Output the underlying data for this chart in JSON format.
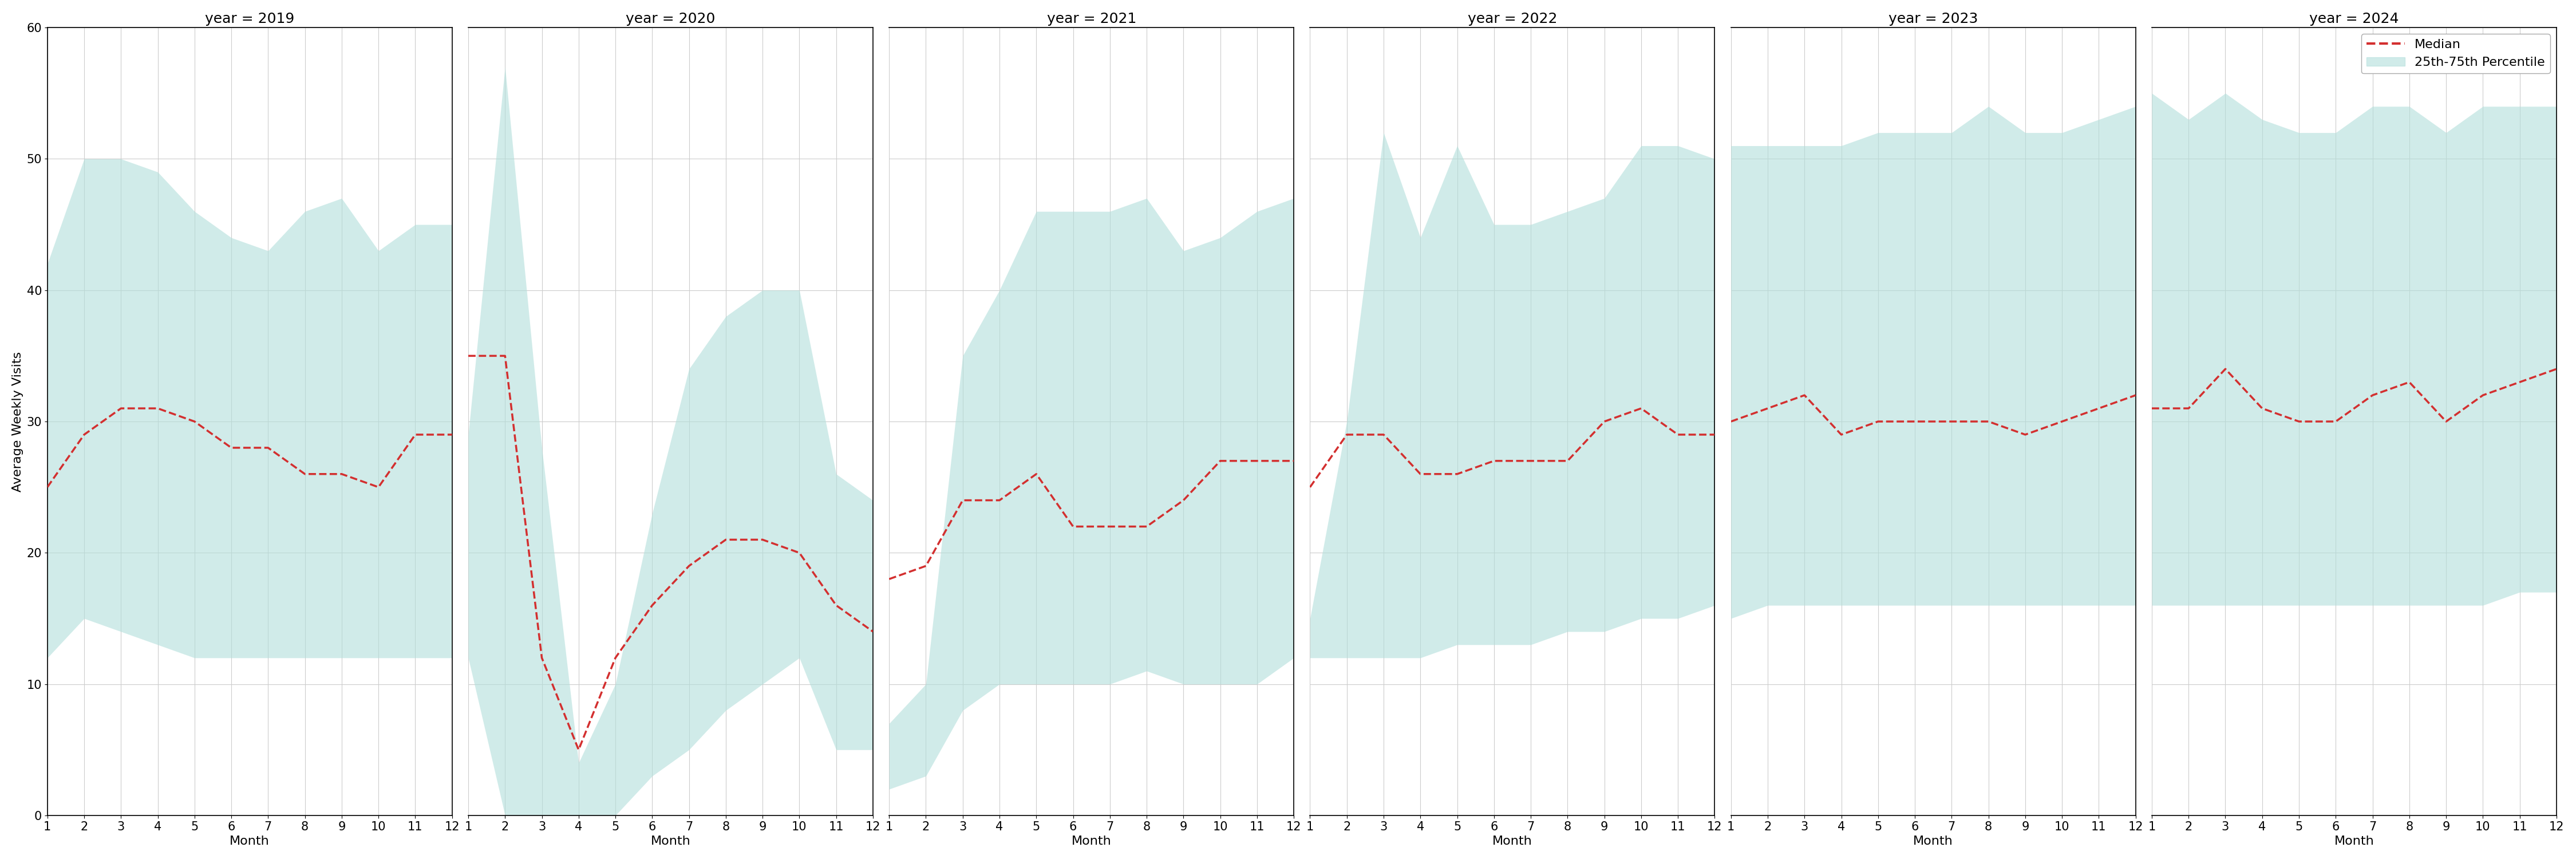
{
  "years": [
    2019,
    2020,
    2021,
    2022,
    2023,
    2024
  ],
  "months": [
    1,
    2,
    3,
    4,
    5,
    6,
    7,
    8,
    9,
    10,
    11,
    12
  ],
  "median": {
    "2019": [
      25,
      29,
      31,
      31,
      30,
      28,
      28,
      26,
      26,
      25,
      29,
      29
    ],
    "2020": [
      35,
      35,
      12,
      5,
      12,
      16,
      19,
      21,
      21,
      20,
      16,
      14
    ],
    "2021": [
      18,
      19,
      24,
      24,
      26,
      22,
      22,
      22,
      24,
      27,
      27,
      27
    ],
    "2022": [
      25,
      29,
      29,
      26,
      26,
      27,
      27,
      27,
      30,
      31,
      29,
      29
    ],
    "2023": [
      30,
      31,
      32,
      29,
      30,
      30,
      30,
      30,
      29,
      30,
      31,
      32
    ],
    "2024": [
      31,
      31,
      34,
      31,
      30,
      30,
      32,
      33,
      30,
      32,
      33,
      34
    ]
  },
  "band_upper": {
    "2019": [
      42,
      50,
      50,
      49,
      46,
      44,
      43,
      46,
      47,
      43,
      45,
      45
    ],
    "2020": [
      29,
      57,
      28,
      4,
      10,
      23,
      34,
      38,
      40,
      40,
      26,
      24
    ],
    "2021": [
      7,
      10,
      35,
      40,
      46,
      46,
      46,
      47,
      43,
      44,
      46,
      47
    ],
    "2022": [
      15,
      30,
      52,
      44,
      51,
      45,
      45,
      46,
      47,
      51,
      51,
      50
    ],
    "2023": [
      51,
      51,
      51,
      51,
      52,
      52,
      52,
      54,
      52,
      52,
      53,
      54
    ],
    "2024": [
      55,
      53,
      55,
      53,
      52,
      52,
      54,
      54,
      52,
      54,
      54,
      54
    ]
  },
  "band_lower": {
    "2019": [
      12,
      15,
      14,
      13,
      12,
      12,
      12,
      12,
      12,
      12,
      12,
      12
    ],
    "2020": [
      12,
      0,
      0,
      0,
      0,
      3,
      5,
      8,
      10,
      12,
      5,
      5
    ],
    "2021": [
      2,
      3,
      8,
      10,
      10,
      10,
      10,
      11,
      10,
      10,
      10,
      12
    ],
    "2022": [
      12,
      12,
      12,
      12,
      13,
      13,
      13,
      14,
      14,
      15,
      15,
      16
    ],
    "2023": [
      15,
      16,
      16,
      16,
      16,
      16,
      16,
      16,
      16,
      16,
      16,
      16
    ],
    "2024": [
      16,
      16,
      16,
      16,
      16,
      16,
      16,
      16,
      16,
      16,
      17,
      17
    ]
  },
  "ylim": [
    0,
    60
  ],
  "yticks": [
    0,
    10,
    20,
    30,
    40,
    50,
    60
  ],
  "xticks": [
    1,
    2,
    3,
    4,
    5,
    6,
    7,
    8,
    9,
    10,
    11,
    12
  ],
  "xlabel": "Month",
  "ylabel": "Average Weekly Visits",
  "fill_color": "#b2dfdb",
  "fill_alpha": 0.6,
  "line_color": "#d32f2f",
  "line_style": "--",
  "line_width": 2.5,
  "bg_color": "#ffffff",
  "grid_color": "#cccccc",
  "title_fontsize": 18,
  "label_fontsize": 16,
  "tick_fontsize": 15,
  "legend_fontsize": 16,
  "legend_labels": [
    "Median",
    "25th-75th Percentile"
  ]
}
